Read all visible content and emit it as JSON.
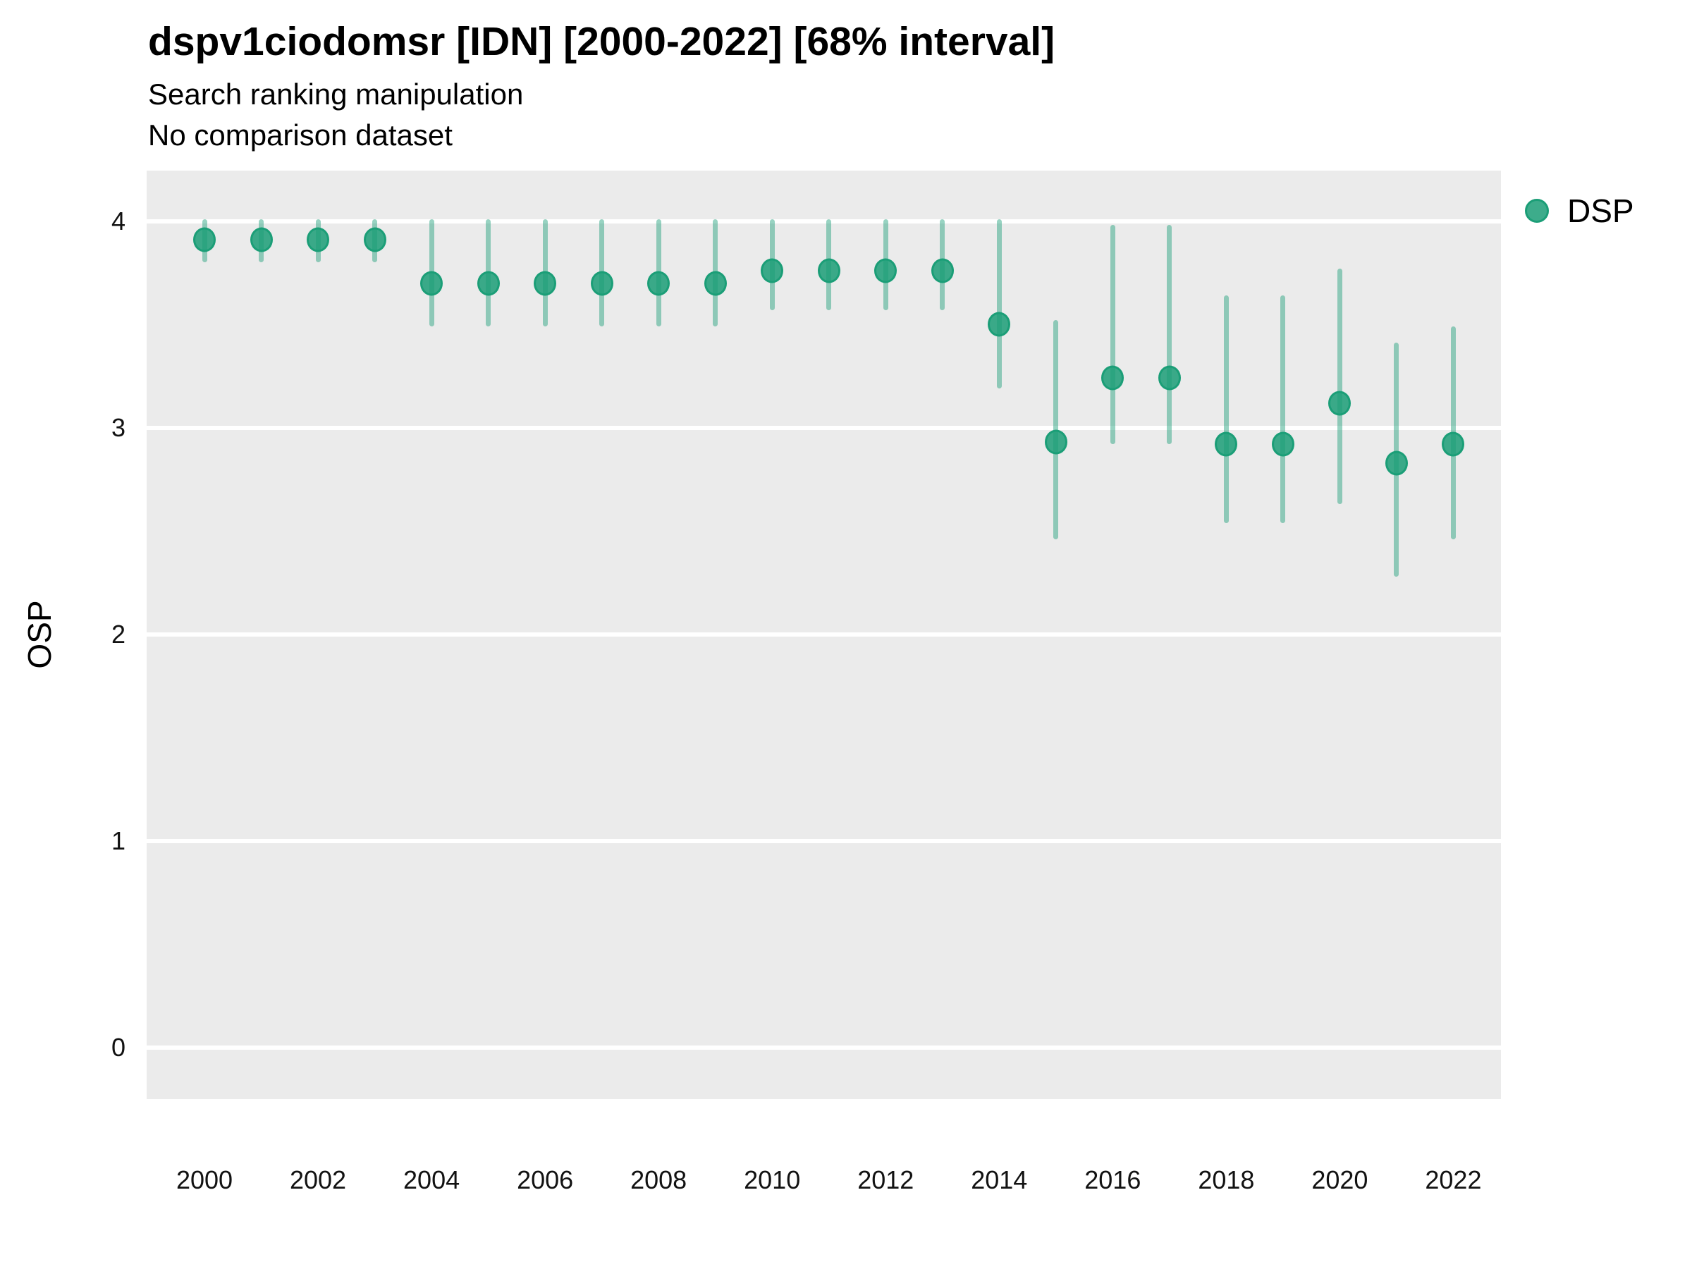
{
  "header": {
    "title": "dspv1ciodomsr [IDN] [2000-2022] [68% interval]",
    "subtitle": "Search ranking manipulation",
    "subtitle2": "No comparison dataset"
  },
  "legend": {
    "label": "DSP"
  },
  "colors": {
    "series_base": "#1b9e77",
    "dot_fill": "rgba(27,158,119,0.85)",
    "dot_stroke": "#1b9e77",
    "interval_bar": "rgba(27,158,119,0.45)",
    "panel_background": "#EBEBEB",
    "gridline": "#FFFFFF",
    "text": "#000000"
  },
  "chart_data": {
    "type": "scatter",
    "subtype": "pointrange",
    "title": "dspv1ciodomsr [IDN] [2000-2022] [68% interval]",
    "subtitle": "Search ranking manipulation",
    "note": "No comparison dataset",
    "interval": "68%",
    "xlabel": "",
    "ylabel": "OSP",
    "xlim": [
      1999.0,
      2022.85
    ],
    "ylim": [
      -0.25,
      4.24
    ],
    "x_ticks": [
      2000,
      2002,
      2004,
      2006,
      2008,
      2010,
      2012,
      2014,
      2016,
      2018,
      2020,
      2022
    ],
    "y_ticks": [
      0,
      1,
      2,
      3,
      4
    ],
    "grid": "horizontal-major-only",
    "legend_position": "right",
    "series": [
      {
        "name": "DSP",
        "color": "#1b9e77",
        "x": [
          2000,
          2001,
          2002,
          2003,
          2004,
          2005,
          2006,
          2007,
          2008,
          2009,
          2010,
          2011,
          2012,
          2013,
          2014,
          2015,
          2016,
          2017,
          2018,
          2019,
          2020,
          2021,
          2022
        ],
        "mid": [
          3.91,
          3.91,
          3.91,
          3.91,
          3.7,
          3.7,
          3.7,
          3.7,
          3.7,
          3.7,
          3.76,
          3.76,
          3.76,
          3.76,
          3.5,
          2.93,
          3.24,
          3.24,
          2.92,
          2.92,
          3.12,
          2.83,
          2.92
        ],
        "lo": [
          3.81,
          3.81,
          3.81,
          3.81,
          3.5,
          3.5,
          3.5,
          3.5,
          3.5,
          3.5,
          3.58,
          3.58,
          3.58,
          3.58,
          3.2,
          2.47,
          2.93,
          2.93,
          2.55,
          2.55,
          2.64,
          2.29,
          2.47
        ],
        "hi": [
          4.0,
          4.0,
          4.0,
          4.0,
          4.0,
          4.0,
          4.0,
          4.0,
          4.0,
          4.0,
          4.0,
          4.0,
          4.0,
          4.0,
          4.0,
          3.51,
          3.97,
          3.97,
          3.63,
          3.63,
          3.76,
          3.4,
          3.48
        ]
      }
    ]
  }
}
